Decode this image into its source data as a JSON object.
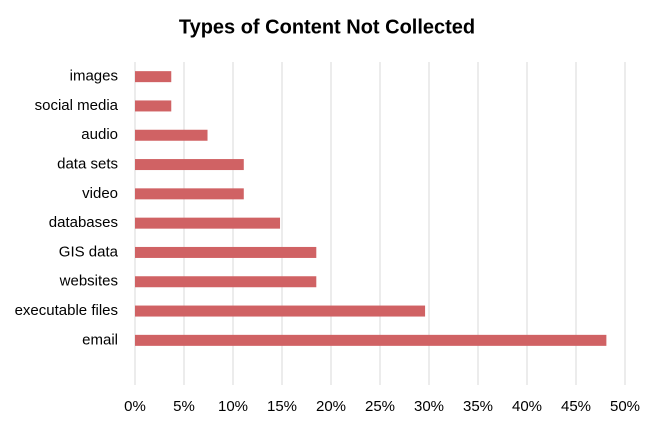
{
  "chart_data": {
    "type": "bar",
    "orientation": "horizontal",
    "title": "Types of Content Not Collected",
    "categories": [
      "images",
      "social media",
      "audio",
      "data sets",
      "video",
      "databases",
      "GIS data",
      "websites",
      "executable files",
      "email"
    ],
    "values": [
      3.7,
      3.7,
      7.4,
      11.1,
      11.1,
      14.8,
      18.5,
      18.5,
      29.6,
      48.1
    ],
    "color": "#d06264",
    "xlim": [
      0,
      50
    ],
    "xticks": [
      {
        "value": 0,
        "label": "0%"
      },
      {
        "value": 5,
        "label": "5%"
      },
      {
        "value": 10,
        "label": "10%"
      },
      {
        "value": 15,
        "label": "15%"
      },
      {
        "value": 20,
        "label": "20%"
      },
      {
        "value": 25,
        "label": "25%"
      },
      {
        "value": 30,
        "label": "30%"
      },
      {
        "value": 35,
        "label": "35%"
      },
      {
        "value": 40,
        "label": "40%"
      },
      {
        "value": 45,
        "label": "45%"
      },
      {
        "value": 50,
        "label": "50%"
      }
    ],
    "grid": true
  }
}
